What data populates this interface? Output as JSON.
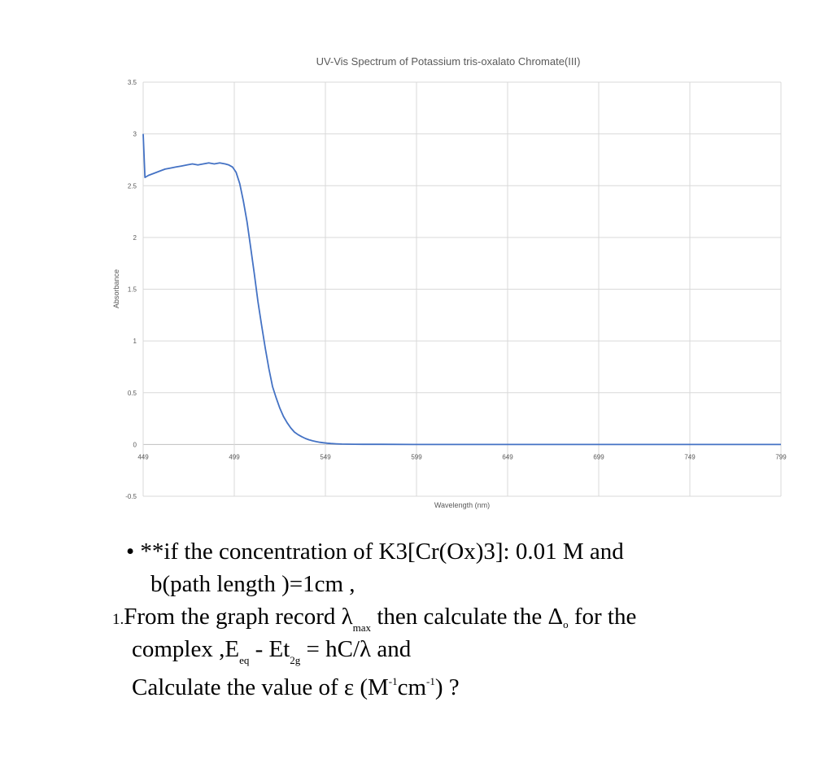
{
  "chart_data": {
    "type": "line",
    "title": "UV-Vis Spectrum of Potassium tris-oxalato Chromate(III)",
    "xlabel": "Wavelength (nm)",
    "ylabel": "Absorbance",
    "xlim": [
      449,
      799
    ],
    "ylim": [
      -0.5,
      3.5
    ],
    "x_ticks": [
      "449",
      "499",
      "549",
      "599",
      "649",
      "699",
      "749",
      "799"
    ],
    "y_ticks": [
      "3.5",
      "3",
      "2.5",
      "2",
      "1.5",
      "1",
      "0.5",
      "0",
      "-0.5"
    ],
    "grid": true,
    "series": [
      {
        "color": "#4472c4",
        "x": [
          449,
          450,
          452,
          455,
          458,
          461,
          464,
          467,
          470,
          473,
          476,
          479,
          482,
          485,
          488,
          491,
          494,
          496,
          498,
          500,
          502,
          504,
          506,
          508,
          510,
          512,
          514,
          516,
          518,
          520,
          522,
          524,
          526,
          528,
          530,
          532,
          534,
          536,
          538,
          540,
          542,
          544,
          546,
          548,
          550,
          552,
          555,
          558,
          561,
          565,
          570,
          580,
          600,
          649,
          699,
          749,
          799
        ],
        "y": [
          3.0,
          2.58,
          2.6,
          2.62,
          2.64,
          2.66,
          2.67,
          2.68,
          2.69,
          2.7,
          2.71,
          2.7,
          2.71,
          2.72,
          2.71,
          2.72,
          2.71,
          2.7,
          2.68,
          2.63,
          2.52,
          2.35,
          2.15,
          1.9,
          1.65,
          1.38,
          1.15,
          0.93,
          0.73,
          0.56,
          0.45,
          0.35,
          0.27,
          0.21,
          0.16,
          0.12,
          0.095,
          0.075,
          0.058,
          0.045,
          0.035,
          0.027,
          0.021,
          0.016,
          0.012,
          0.009,
          0.006,
          0.004,
          0.003,
          0.002,
          0.001,
          0.001,
          0.0,
          0.0,
          0.0,
          0.0,
          0.0
        ]
      }
    ]
  },
  "question": {
    "bullet": "•",
    "line1": "**if the concentration of K3[Cr(Ox)3]:  0.01 M and",
    "line2": "b(path length )=1cm ,",
    "number": "1.",
    "line3a": "From the graph record λ",
    "line3_sub": "max",
    "line3b": " then calculate the Δ",
    "line3_sub2": "o",
    "line3c": " for the",
    "line4a": "complex ,E",
    "line4_sub": "eq",
    "line4b": "  -  Et",
    "line4_sub2": "2g",
    "line4c": "  =  hC/λ and",
    "line5a": "Calculate the value of ε (M",
    "line5_sup": "-1",
    "line5b": "cm",
    "line5_sup2": "-1",
    "line5c": ")  ?"
  }
}
